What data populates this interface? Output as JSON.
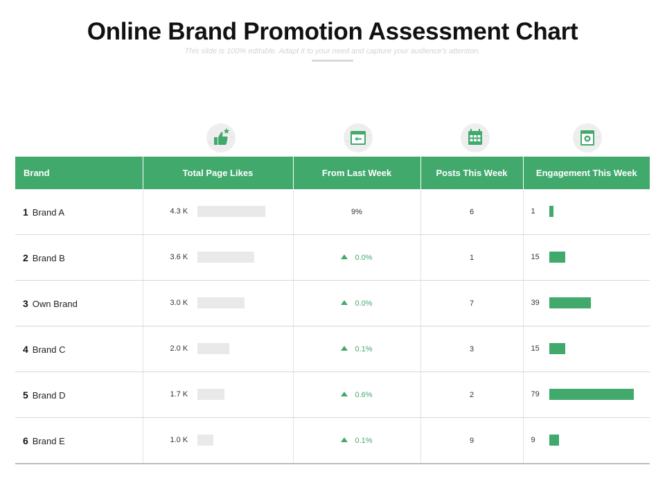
{
  "header": {
    "title": "Online Brand Promotion Assessment Chart",
    "subtitle": "This slide is 100% editable. Adapt it to your need and capture your audience's attention."
  },
  "icons": [
    "thumbs-up-icon",
    "browser-window-icon",
    "calendar-icon",
    "engagement-screen-icon"
  ],
  "accent_color": "#41a96c",
  "columns": [
    "Brand",
    "Total Page Likes",
    "From Last Week",
    "Posts This Week",
    "Engagement This Week"
  ],
  "likes_max": 4.3,
  "engagement_max": 79,
  "rows": [
    {
      "rank": "1",
      "brand": "Brand A",
      "likes": "4.3 K",
      "likes_num": 4.3,
      "change": "9%",
      "up": false,
      "posts": "6",
      "engagement": "1",
      "engagement_num": 1
    },
    {
      "rank": "2",
      "brand": "Brand B",
      "likes": "3.6 K",
      "likes_num": 3.6,
      "change": "0.0%",
      "up": true,
      "posts": "1",
      "engagement": "15",
      "engagement_num": 15
    },
    {
      "rank": "3",
      "brand": "Own Brand",
      "likes": "3.0 K",
      "likes_num": 3.0,
      "change": "0.0%",
      "up": true,
      "posts": "7",
      "engagement": "39",
      "engagement_num": 39
    },
    {
      "rank": "4",
      "brand": "Brand C",
      "likes": "2.0 K",
      "likes_num": 2.0,
      "change": "0.1%",
      "up": true,
      "posts": "3",
      "engagement": "15",
      "engagement_num": 15
    },
    {
      "rank": "5",
      "brand": "Brand D",
      "likes": "1.7 K",
      "likes_num": 1.7,
      "change": "0.6%",
      "up": true,
      "posts": "2",
      "engagement": "79",
      "engagement_num": 79
    },
    {
      "rank": "6",
      "brand": "Brand E",
      "likes": "1.0 K",
      "likes_num": 1.0,
      "change": "0.1%",
      "up": true,
      "posts": "9",
      "engagement": "9",
      "engagement_num": 9
    }
  ]
}
